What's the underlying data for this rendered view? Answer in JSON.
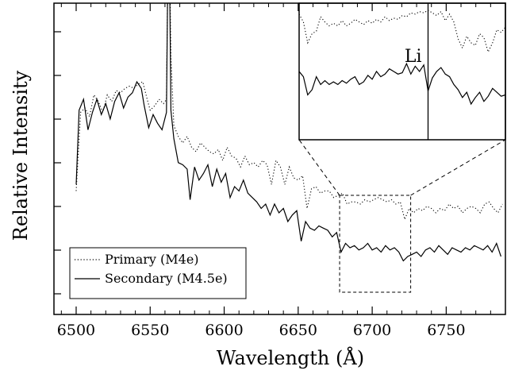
{
  "chart_data": {
    "type": "line",
    "title": "",
    "xlabel": "Wavelength (Å)",
    "ylabel": "Relative Intensity",
    "xlim": [
      6485,
      6790
    ],
    "xticks": [
      6500,
      6550,
      6600,
      6650,
      6700,
      6750
    ],
    "x_tick_labels": [
      "6500",
      "6550",
      "6600",
      "6650",
      "6700",
      "6750"
    ],
    "y_tick_labels_shown": false,
    "grid": false,
    "legend_position": "bottom-left",
    "series": [
      {
        "name": "Primary (M4e)",
        "style": "dotted",
        "points": [
          [
            6500,
            0.58
          ],
          [
            6503,
            0.94
          ],
          [
            6506,
            0.96
          ],
          [
            6509,
            0.92
          ],
          [
            6512,
            1.02
          ],
          [
            6515,
            0.99
          ],
          [
            6518,
            0.94
          ],
          [
            6521,
            1.02
          ],
          [
            6524,
            0.99
          ],
          [
            6527,
            1.04
          ],
          [
            6530,
            1.03
          ],
          [
            6533,
            1.05
          ],
          [
            6536,
            1.06
          ],
          [
            6539,
            1.05
          ],
          [
            6542,
            1.07
          ],
          [
            6545,
            1.08
          ],
          [
            6548,
            1.0
          ],
          [
            6550,
            0.95
          ],
          [
            6553,
            0.97
          ],
          [
            6556,
            1.0
          ],
          [
            6559,
            0.98
          ],
          [
            6561,
            1.0
          ],
          [
            6562.5,
            2.0
          ],
          [
            6564,
            1.2
          ],
          [
            6566,
            0.88
          ],
          [
            6569,
            0.83
          ],
          [
            6572,
            0.8
          ],
          [
            6575,
            0.83
          ],
          [
            6578,
            0.78
          ],
          [
            6581,
            0.76
          ],
          [
            6584,
            0.8
          ],
          [
            6587,
            0.78
          ],
          [
            6590,
            0.76
          ],
          [
            6593,
            0.75
          ],
          [
            6596,
            0.77
          ],
          [
            6599,
            0.72
          ],
          [
            6602,
            0.78
          ],
          [
            6605,
            0.74
          ],
          [
            6608,
            0.73
          ],
          [
            6611,
            0.69
          ],
          [
            6614,
            0.74
          ],
          [
            6617,
            0.7
          ],
          [
            6620,
            0.71
          ],
          [
            6623,
            0.69
          ],
          [
            6626,
            0.72
          ],
          [
            6629,
            0.7
          ],
          [
            6632,
            0.61
          ],
          [
            6635,
            0.72
          ],
          [
            6638,
            0.69
          ],
          [
            6641,
            0.61
          ],
          [
            6644,
            0.69
          ],
          [
            6647,
            0.64
          ],
          [
            6650,
            0.63
          ],
          [
            6653,
            0.65
          ],
          [
            6656,
            0.5
          ],
          [
            6659,
            0.59
          ],
          [
            6662,
            0.6
          ],
          [
            6665,
            0.57
          ],
          [
            6668,
            0.58
          ],
          [
            6671,
            0.58
          ],
          [
            6674,
            0.55
          ],
          [
            6677,
            0.56
          ],
          [
            6680,
            0.57
          ],
          [
            6683,
            0.52
          ],
          [
            6686,
            0.53
          ],
          [
            6689,
            0.53
          ],
          [
            6692,
            0.52
          ],
          [
            6695,
            0.54
          ],
          [
            6698,
            0.53
          ],
          [
            6701,
            0.54
          ],
          [
            6704,
            0.55
          ],
          [
            6707,
            0.54
          ],
          [
            6710,
            0.53
          ],
          [
            6713,
            0.54
          ],
          [
            6716,
            0.52
          ],
          [
            6719,
            0.53
          ],
          [
            6722,
            0.45
          ],
          [
            6725,
            0.5
          ],
          [
            6728,
            0.48
          ],
          [
            6731,
            0.5
          ],
          [
            6734,
            0.49
          ],
          [
            6737,
            0.51
          ],
          [
            6740,
            0.5
          ],
          [
            6743,
            0.48
          ],
          [
            6746,
            0.5
          ],
          [
            6749,
            0.49
          ],
          [
            6752,
            0.52
          ],
          [
            6755,
            0.5
          ],
          [
            6758,
            0.51
          ],
          [
            6761,
            0.48
          ],
          [
            6764,
            0.5
          ],
          [
            6767,
            0.51
          ],
          [
            6770,
            0.5
          ],
          [
            6773,
            0.48
          ],
          [
            6776,
            0.52
          ],
          [
            6779,
            0.53
          ],
          [
            6782,
            0.5
          ],
          [
            6785,
            0.48
          ],
          [
            6788,
            0.52
          ]
        ]
      },
      {
        "name": "Secondary (M4.5e)",
        "style": "solid",
        "points": [
          [
            6500,
            0.61
          ],
          [
            6502,
            0.95
          ],
          [
            6505,
            1.0
          ],
          [
            6508,
            0.86
          ],
          [
            6511,
            0.94
          ],
          [
            6514,
            1.0
          ],
          [
            6517,
            0.93
          ],
          [
            6520,
            0.98
          ],
          [
            6523,
            0.91
          ],
          [
            6526,
            0.99
          ],
          [
            6529,
            1.03
          ],
          [
            6532,
            0.96
          ],
          [
            6535,
            1.01
          ],
          [
            6538,
            1.03
          ],
          [
            6541,
            1.08
          ],
          [
            6544,
            1.05
          ],
          [
            6546,
            0.97
          ],
          [
            6549,
            0.87
          ],
          [
            6552,
            0.93
          ],
          [
            6555,
            0.89
          ],
          [
            6558,
            0.86
          ],
          [
            6561,
            0.94
          ],
          [
            6562.5,
            2.0
          ],
          [
            6564,
            0.95
          ],
          [
            6566,
            0.82
          ],
          [
            6569,
            0.71
          ],
          [
            6572,
            0.7
          ],
          [
            6575,
            0.68
          ],
          [
            6577,
            0.54
          ],
          [
            6580,
            0.69
          ],
          [
            6583,
            0.63
          ],
          [
            6586,
            0.66
          ],
          [
            6589,
            0.7
          ],
          [
            6592,
            0.6
          ],
          [
            6595,
            0.68
          ],
          [
            6598,
            0.62
          ],
          [
            6601,
            0.66
          ],
          [
            6604,
            0.55
          ],
          [
            6607,
            0.6
          ],
          [
            6610,
            0.58
          ],
          [
            6613,
            0.63
          ],
          [
            6616,
            0.57
          ],
          [
            6619,
            0.55
          ],
          [
            6622,
            0.53
          ],
          [
            6625,
            0.5
          ],
          [
            6628,
            0.52
          ],
          [
            6631,
            0.47
          ],
          [
            6634,
            0.52
          ],
          [
            6637,
            0.48
          ],
          [
            6640,
            0.5
          ],
          [
            6643,
            0.44
          ],
          [
            6646,
            0.47
          ],
          [
            6649,
            0.49
          ],
          [
            6652,
            0.35
          ],
          [
            6655,
            0.44
          ],
          [
            6658,
            0.41
          ],
          [
            6661,
            0.4
          ],
          [
            6664,
            0.42
          ],
          [
            6667,
            0.41
          ],
          [
            6670,
            0.4
          ],
          [
            6673,
            0.37
          ],
          [
            6676,
            0.39
          ],
          [
            6679,
            0.3
          ],
          [
            6682,
            0.34
          ],
          [
            6685,
            0.32
          ],
          [
            6688,
            0.33
          ],
          [
            6691,
            0.31
          ],
          [
            6694,
            0.32
          ],
          [
            6697,
            0.34
          ],
          [
            6700,
            0.31
          ],
          [
            6703,
            0.32
          ],
          [
            6706,
            0.3
          ],
          [
            6709,
            0.33
          ],
          [
            6712,
            0.31
          ],
          [
            6715,
            0.32
          ],
          [
            6718,
            0.3
          ],
          [
            6721,
            0.26
          ],
          [
            6724,
            0.28
          ],
          [
            6727,
            0.29
          ],
          [
            6730,
            0.3
          ],
          [
            6733,
            0.28
          ],
          [
            6736,
            0.31
          ],
          [
            6739,
            0.32
          ],
          [
            6742,
            0.3
          ],
          [
            6745,
            0.33
          ],
          [
            6748,
            0.31
          ],
          [
            6751,
            0.29
          ],
          [
            6754,
            0.32
          ],
          [
            6757,
            0.31
          ],
          [
            6760,
            0.3
          ],
          [
            6763,
            0.32
          ],
          [
            6766,
            0.31
          ],
          [
            6769,
            0.33
          ],
          [
            6772,
            0.32
          ],
          [
            6775,
            0.31
          ],
          [
            6778,
            0.33
          ],
          [
            6781,
            0.3
          ],
          [
            6784,
            0.34
          ],
          [
            6787,
            0.28
          ]
        ]
      }
    ],
    "zoom_box": {
      "xlim": [
        6678,
        6726
      ]
    },
    "inset": {
      "label": "Li",
      "line_position": 6708,
      "xlim": [
        6678,
        6726
      ],
      "series": [
        {
          "name": "Primary (M4e)",
          "style": "dotted",
          "points": [
            [
              6678,
              0.94
            ],
            [
              6679,
              0.88
            ],
            [
              6680,
              0.72
            ],
            [
              6681,
              0.79
            ],
            [
              6682,
              0.81
            ],
            [
              6683,
              0.92
            ],
            [
              6684,
              0.88
            ],
            [
              6685,
              0.85
            ],
            [
              6686,
              0.87
            ],
            [
              6687,
              0.85
            ],
            [
              6688,
              0.89
            ],
            [
              6689,
              0.85
            ],
            [
              6690,
              0.87
            ],
            [
              6691,
              0.9
            ],
            [
              6692,
              0.88
            ],
            [
              6693,
              0.86
            ],
            [
              6694,
              0.89
            ],
            [
              6695,
              0.87
            ],
            [
              6696,
              0.9
            ],
            [
              6697,
              0.88
            ],
            [
              6698,
              0.92
            ],
            [
              6699,
              0.89
            ],
            [
              6700,
              0.91
            ],
            [
              6701,
              0.9
            ],
            [
              6702,
              0.93
            ],
            [
              6703,
              0.92
            ],
            [
              6704,
              0.95
            ],
            [
              6705,
              0.94
            ],
            [
              6706,
              0.96
            ],
            [
              6707,
              0.95
            ],
            [
              6708,
              0.97
            ],
            [
              6709,
              0.95
            ],
            [
              6710,
              0.93
            ],
            [
              6711,
              0.96
            ],
            [
              6712,
              0.89
            ],
            [
              6713,
              0.94
            ],
            [
              6714,
              0.88
            ],
            [
              6715,
              0.75
            ],
            [
              6716,
              0.68
            ],
            [
              6717,
              0.77
            ],
            [
              6718,
              0.72
            ],
            [
              6719,
              0.7
            ],
            [
              6720,
              0.79
            ],
            [
              6721,
              0.76
            ],
            [
              6722,
              0.65
            ],
            [
              6723,
              0.72
            ],
            [
              6724,
              0.82
            ],
            [
              6725,
              0.8
            ],
            [
              6726,
              0.84
            ]
          ]
        },
        {
          "name": "Secondary (M4.5e)",
          "style": "solid",
          "points": [
            [
              6678,
              0.5
            ],
            [
              6679,
              0.46
            ],
            [
              6680,
              0.32
            ],
            [
              6681,
              0.36
            ],
            [
              6682,
              0.46
            ],
            [
              6683,
              0.4
            ],
            [
              6684,
              0.43
            ],
            [
              6685,
              0.4
            ],
            [
              6686,
              0.42
            ],
            [
              6687,
              0.4
            ],
            [
              6688,
              0.43
            ],
            [
              6689,
              0.41
            ],
            [
              6690,
              0.44
            ],
            [
              6691,
              0.46
            ],
            [
              6692,
              0.4
            ],
            [
              6693,
              0.42
            ],
            [
              6694,
              0.47
            ],
            [
              6695,
              0.44
            ],
            [
              6696,
              0.5
            ],
            [
              6697,
              0.46
            ],
            [
              6698,
              0.48
            ],
            [
              6699,
              0.52
            ],
            [
              6700,
              0.5
            ],
            [
              6701,
              0.48
            ],
            [
              6702,
              0.49
            ],
            [
              6703,
              0.56
            ],
            [
              6704,
              0.48
            ],
            [
              6705,
              0.54
            ],
            [
              6706,
              0.5
            ],
            [
              6707,
              0.55
            ],
            [
              6708,
              0.35
            ],
            [
              6709,
              0.45
            ],
            [
              6710,
              0.5
            ],
            [
              6711,
              0.53
            ],
            [
              6712,
              0.48
            ],
            [
              6713,
              0.46
            ],
            [
              6714,
              0.4
            ],
            [
              6715,
              0.36
            ],
            [
              6716,
              0.3
            ],
            [
              6717,
              0.34
            ],
            [
              6718,
              0.25
            ],
            [
              6719,
              0.3
            ],
            [
              6720,
              0.34
            ],
            [
              6721,
              0.27
            ],
            [
              6722,
              0.31
            ],
            [
              6723,
              0.37
            ],
            [
              6724,
              0.34
            ],
            [
              6725,
              0.31
            ],
            [
              6726,
              0.32
            ]
          ]
        }
      ]
    }
  }
}
